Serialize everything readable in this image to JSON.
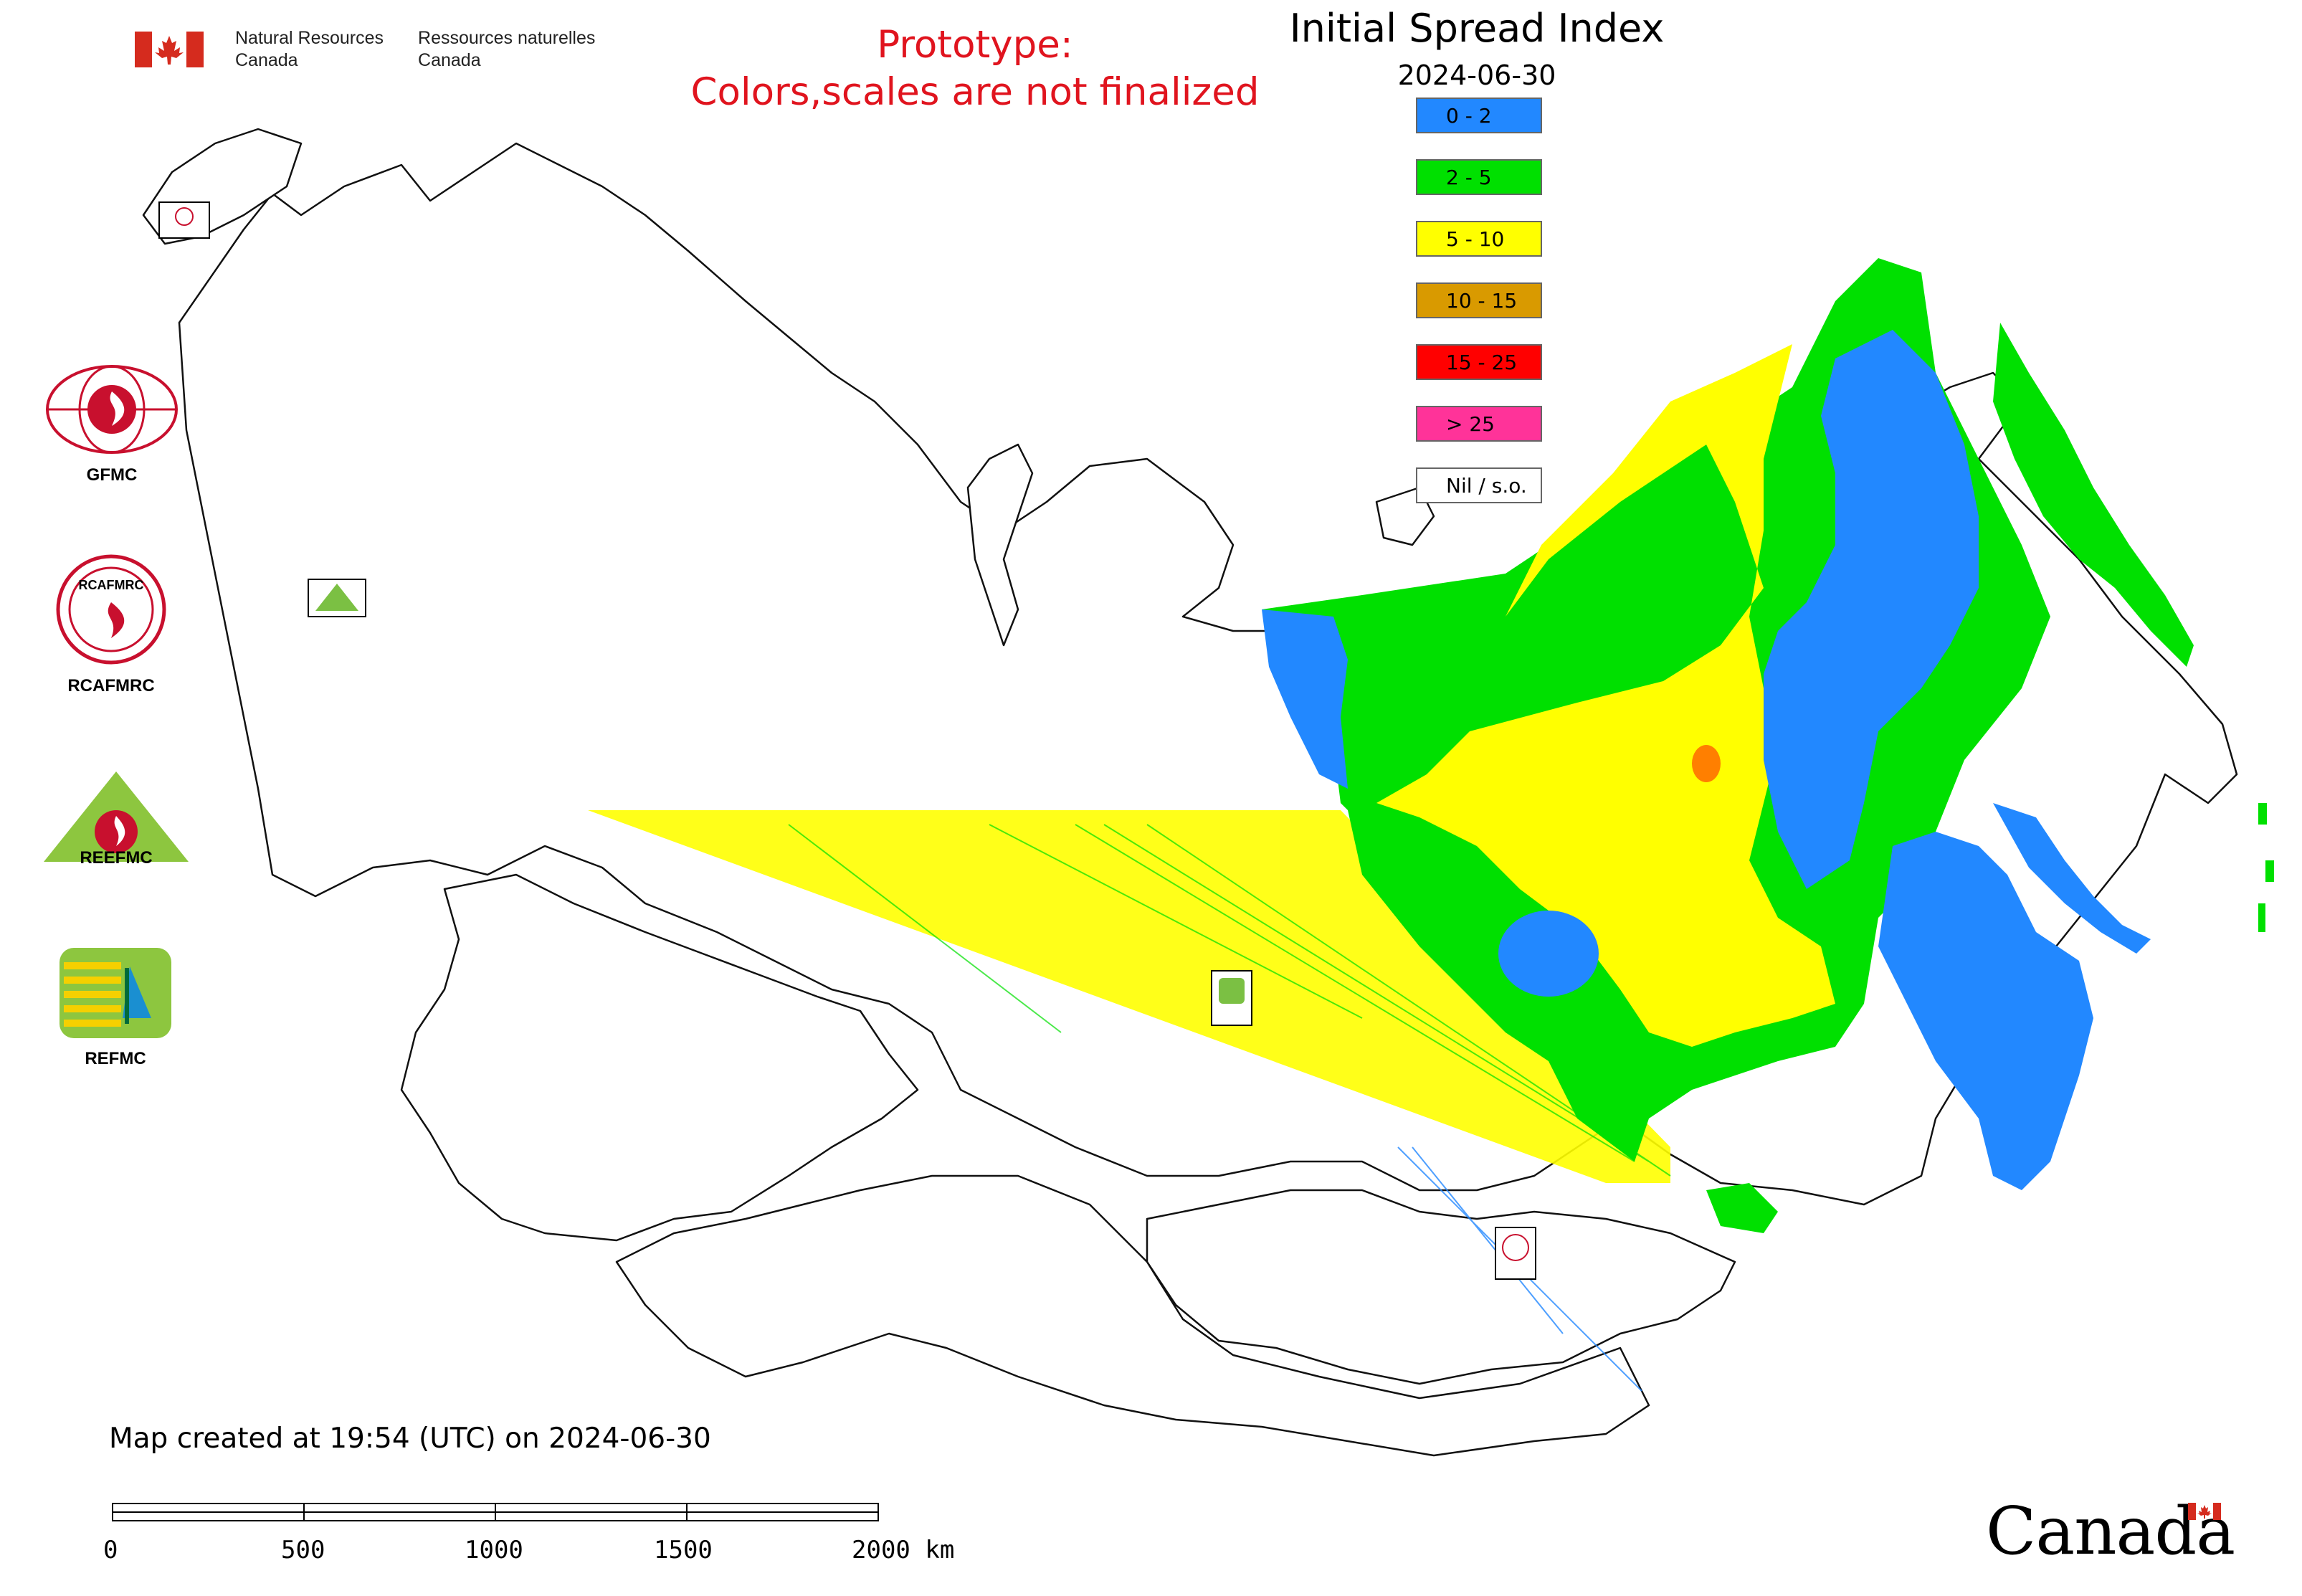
{
  "header": {
    "gov_en_line1": "Natural Resources",
    "gov_en_line2": "Canada",
    "gov_fr_line1": "Ressources naturelles",
    "gov_fr_line2": "Canada"
  },
  "notice": {
    "line1": "Prototype:",
    "line2": "Colors,scales are not finalized"
  },
  "map": {
    "title": "Initial Spread Index",
    "date": "2024-06-30",
    "created": "Map created at 19:54 (UTC) on 2024-06-30"
  },
  "legend": [
    {
      "label": "0 - 2",
      "color": "#2288ff"
    },
    {
      "label": "2 - 5",
      "color": "#00e000"
    },
    {
      "label": "5 - 10",
      "color": "#ffff00"
    },
    {
      "label": "10 - 15",
      "color": "#d99a00"
    },
    {
      "label": "15 - 25",
      "color": "#ff0000"
    },
    {
      "label": "> 25",
      "color": "#ff3399"
    },
    {
      "label": "Nil / s.o.",
      "color": "#ffffff"
    }
  ],
  "agencies": [
    {
      "name": "GFMC"
    },
    {
      "name": "RCAFMRC"
    },
    {
      "name": "REEFMC"
    },
    {
      "name": "REFMC"
    }
  ],
  "logo_inner_text": {
    "rcafmrc": "RCAFMRC",
    "reefmc": "REEFMC"
  },
  "scale": {
    "labels": [
      "0",
      "500",
      "1000",
      "1500",
      "2000 km"
    ]
  },
  "footer": {
    "wordmark": "Canada"
  }
}
